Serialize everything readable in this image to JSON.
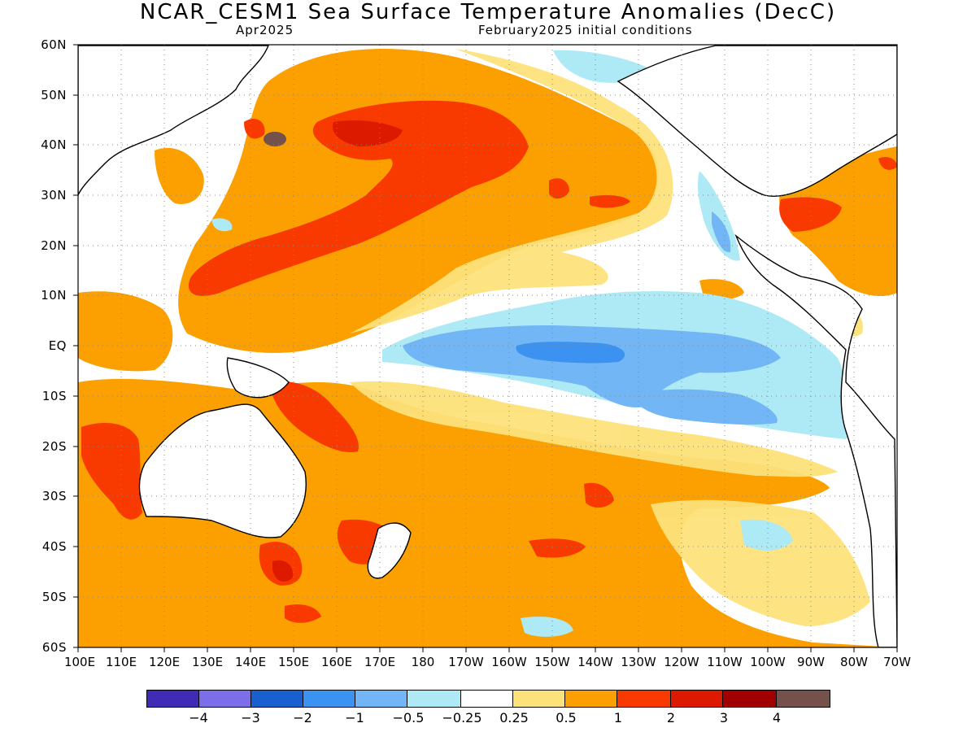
{
  "title": "NCAR_CESM1 Sea Surface Temperature Anomalies (DecC)",
  "valid_month": "Apr2025",
  "init_label": "February2025 initial conditions",
  "lat_labels": [
    "60N",
    "50N",
    "40N",
    "30N",
    "20N",
    "10N",
    "EQ",
    "10S",
    "20S",
    "30S",
    "40S",
    "50S",
    "60S"
  ],
  "lon_labels": [
    "100E",
    "110E",
    "120E",
    "130E",
    "140E",
    "150E",
    "160E",
    "170E",
    "180",
    "170W",
    "160W",
    "150W",
    "140W",
    "130W",
    "120W",
    "110W",
    "100W",
    "90W",
    "80W",
    "70W"
  ],
  "colorbar": {
    "labels": [
      "-4",
      "-3",
      "-2",
      "-1",
      "-0.5",
      "-0.25",
      "0.25",
      "0.5",
      "1",
      "2",
      "3",
      "4"
    ],
    "colors": [
      "#3f2bb5",
      "#7b6ee8",
      "#1a5fd0",
      "#3c92f0",
      "#72b6f5",
      "#aeeaf6",
      "#ffffff",
      "#fde17a",
      "#fba000",
      "#f93a00",
      "#dc1a00",
      "#a00000",
      "#74514a"
    ]
  }
}
